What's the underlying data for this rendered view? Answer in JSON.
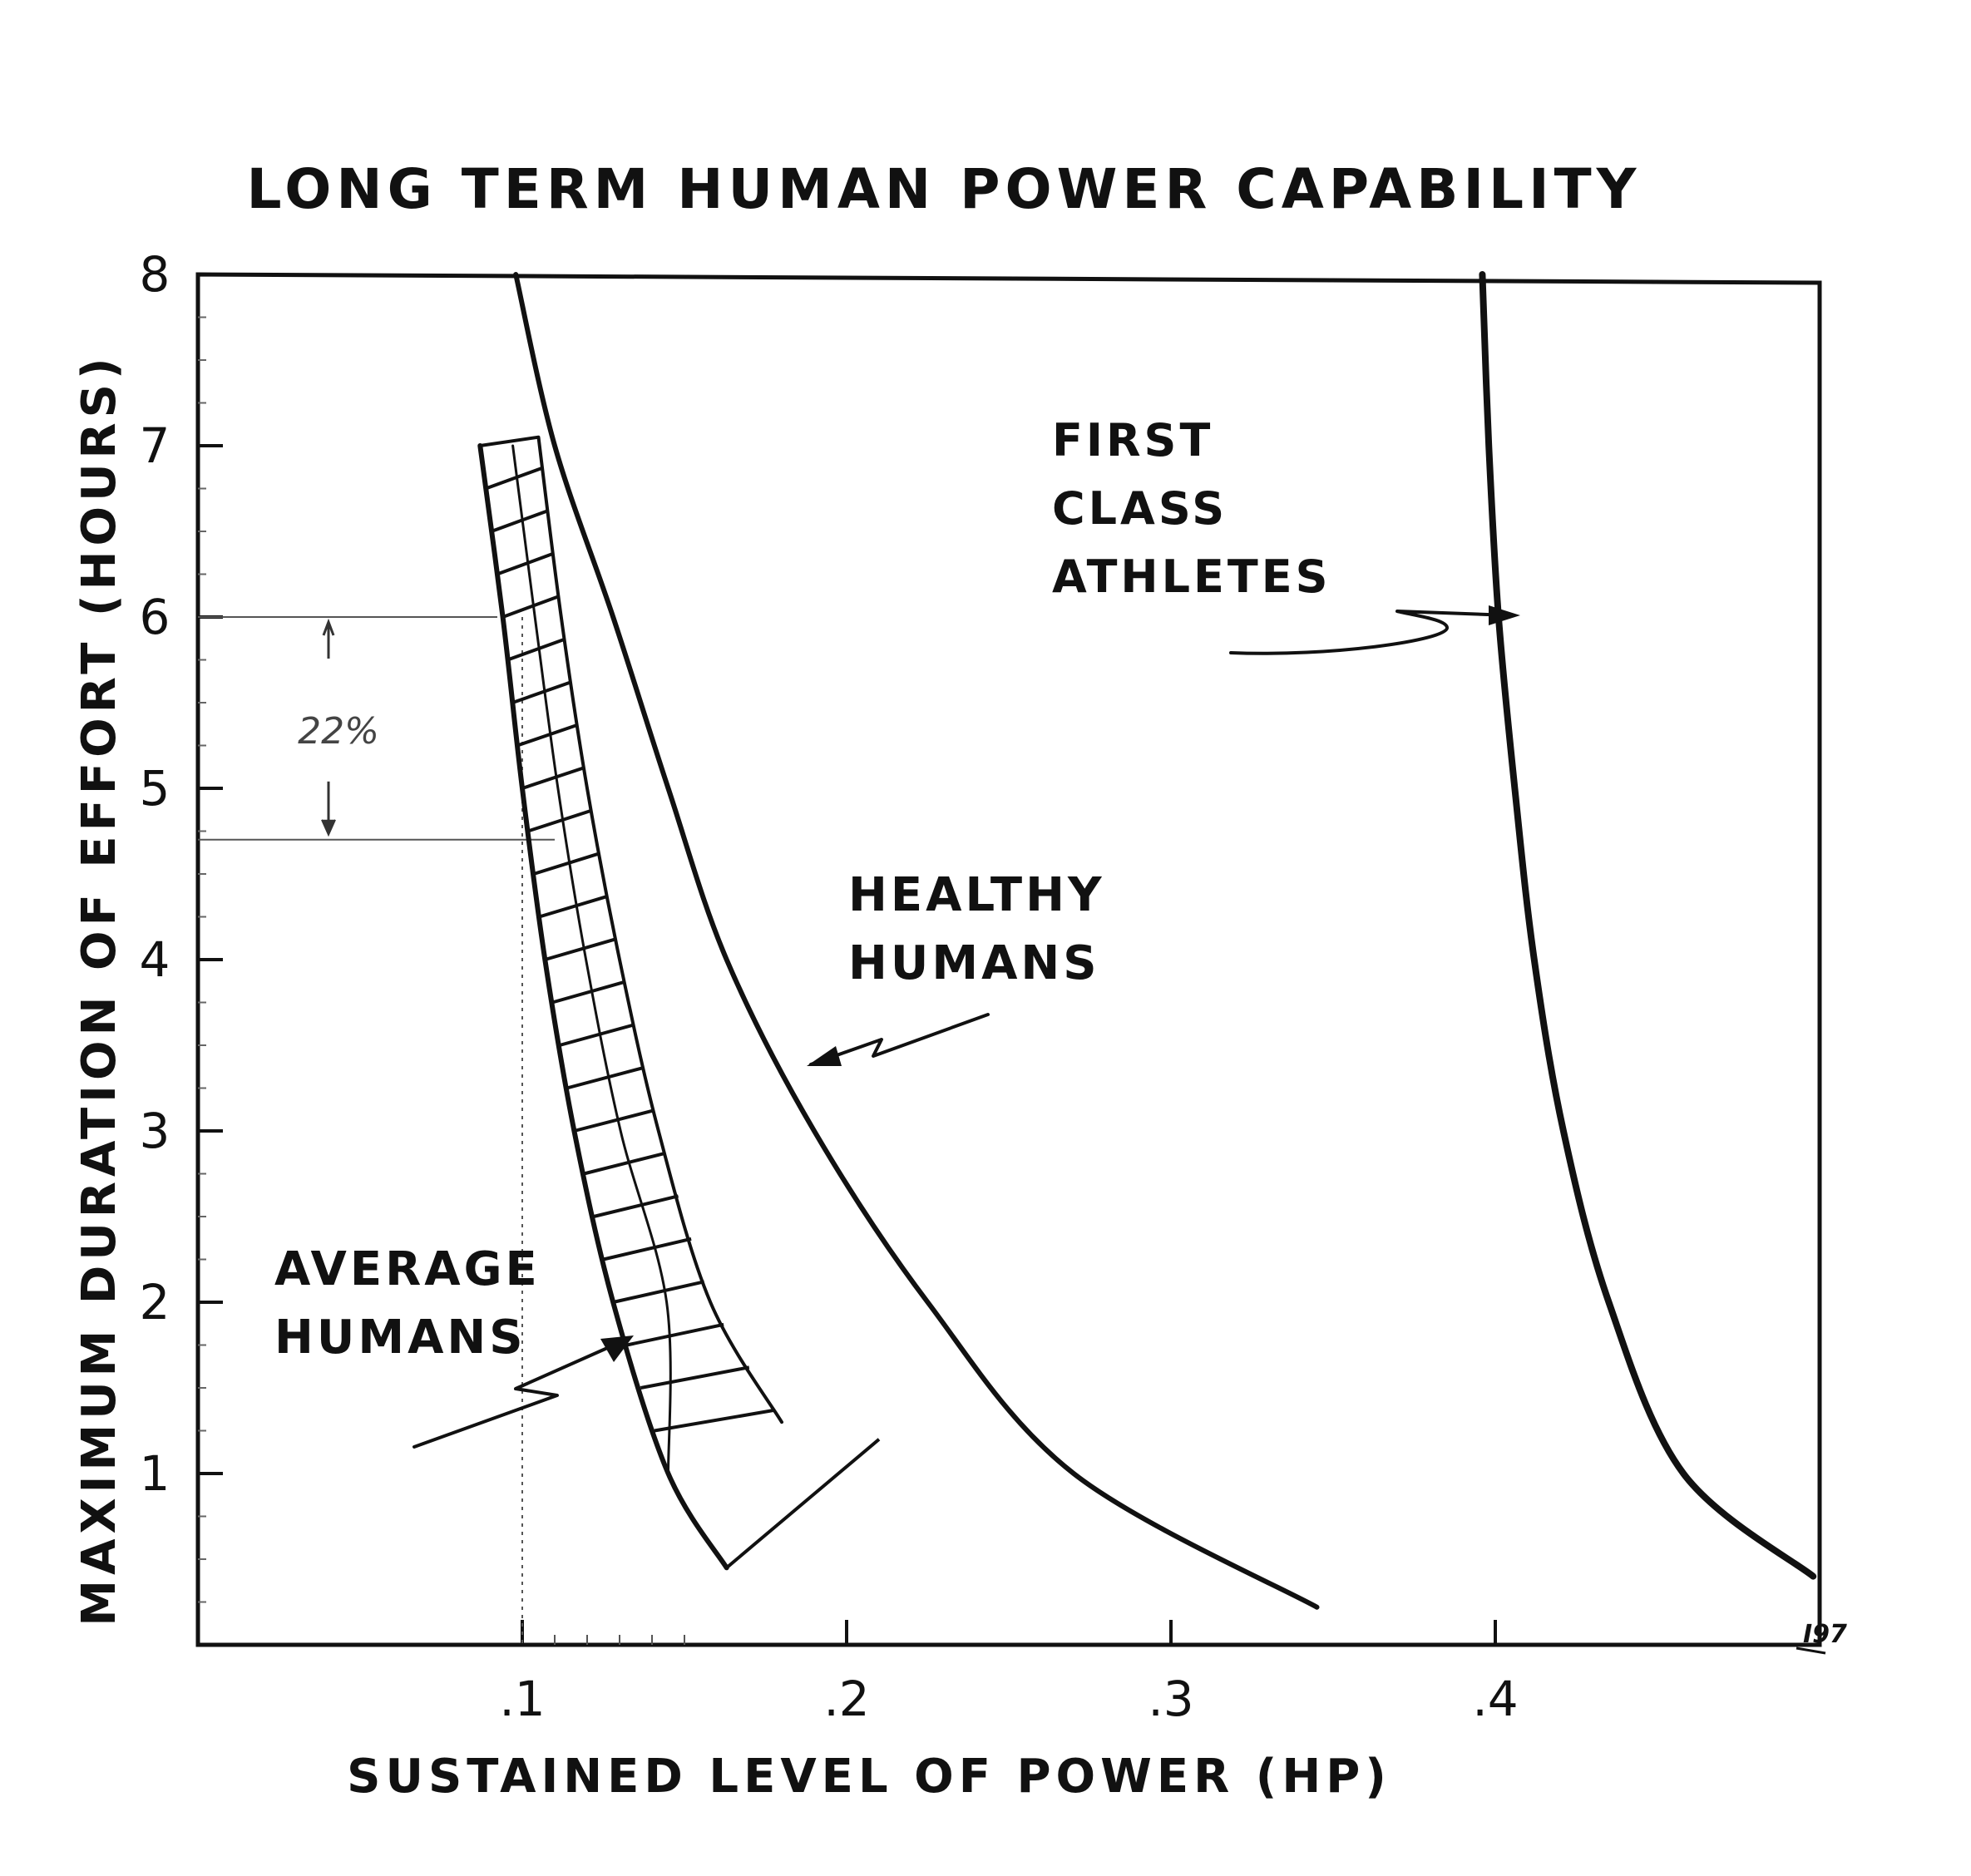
{
  "chart_data": {
    "type": "line",
    "title": "LONG TERM HUMAN POWER CAPABILITY",
    "xlabel": "SUSTAINED LEVEL OF POWER (HP)",
    "ylabel": "MAXIMUM DURATION OF EFFORT (HOURS)",
    "xlim": [
      0,
      0.5
    ],
    "ylim": [
      0,
      8
    ],
    "x_ticks": [
      {
        "value": 0.1,
        "label": ".1"
      },
      {
        "value": 0.2,
        "label": ".2"
      },
      {
        "value": 0.3,
        "label": ".3"
      },
      {
        "value": 0.4,
        "label": ".4"
      }
    ],
    "y_ticks": [
      {
        "value": 1,
        "label": "1"
      },
      {
        "value": 2,
        "label": "2"
      },
      {
        "value": 3,
        "label": "3"
      },
      {
        "value": 4,
        "label": "4"
      },
      {
        "value": 5,
        "label": "5"
      },
      {
        "value": 6,
        "label": "6"
      },
      {
        "value": 7,
        "label": "7"
      },
      {
        "value": 8,
        "label": "8"
      }
    ],
    "grid": false,
    "series": [
      {
        "name": "HEALTHY HUMANS",
        "label_lines": [
          "HEALTHY",
          "HUMANS"
        ],
        "points": [
          [
            0.098,
            8.0
          ],
          [
            0.11,
            7.0
          ],
          [
            0.128,
            6.0
          ],
          [
            0.145,
            5.0
          ],
          [
            0.163,
            4.0
          ],
          [
            0.19,
            3.0
          ],
          [
            0.225,
            2.0
          ],
          [
            0.27,
            1.0
          ],
          [
            0.345,
            0.22
          ]
        ]
      },
      {
        "name": "FIRST CLASS ATHLETES",
        "label_lines": [
          "FIRST",
          "CLASS",
          "ATHLETES"
        ],
        "points": [
          [
            0.396,
            8.0
          ],
          [
            0.398,
            7.0
          ],
          [
            0.401,
            6.0
          ],
          [
            0.406,
            5.0
          ],
          [
            0.412,
            4.0
          ],
          [
            0.421,
            3.0
          ],
          [
            0.435,
            2.0
          ],
          [
            0.458,
            1.0
          ],
          [
            0.498,
            0.4
          ]
        ]
      }
    ],
    "band": {
      "name": "AVERAGE HUMANS",
      "label_lines": [
        "AVERAGE",
        "HUMANS"
      ],
      "left_edge": [
        [
          0.087,
          7.0
        ],
        [
          0.094,
          6.0
        ],
        [
          0.1,
          5.0
        ],
        [
          0.107,
          4.0
        ],
        [
          0.116,
          3.0
        ],
        [
          0.128,
          2.0
        ],
        [
          0.145,
          1.0
        ],
        [
          0.163,
          0.45
        ]
      ],
      "right_edge": [
        [
          0.105,
          7.05
        ],
        [
          0.112,
          6.0
        ],
        [
          0.12,
          5.0
        ],
        [
          0.13,
          4.0
        ],
        [
          0.142,
          3.0
        ],
        [
          0.158,
          2.0
        ],
        [
          0.18,
          1.3
        ],
        [
          0.21,
          1.2
        ]
      ]
    },
    "annotations": [
      {
        "text": "22%",
        "y_from": 6.0,
        "y_to": 4.7
      }
    ],
    "signature": "I97"
  }
}
